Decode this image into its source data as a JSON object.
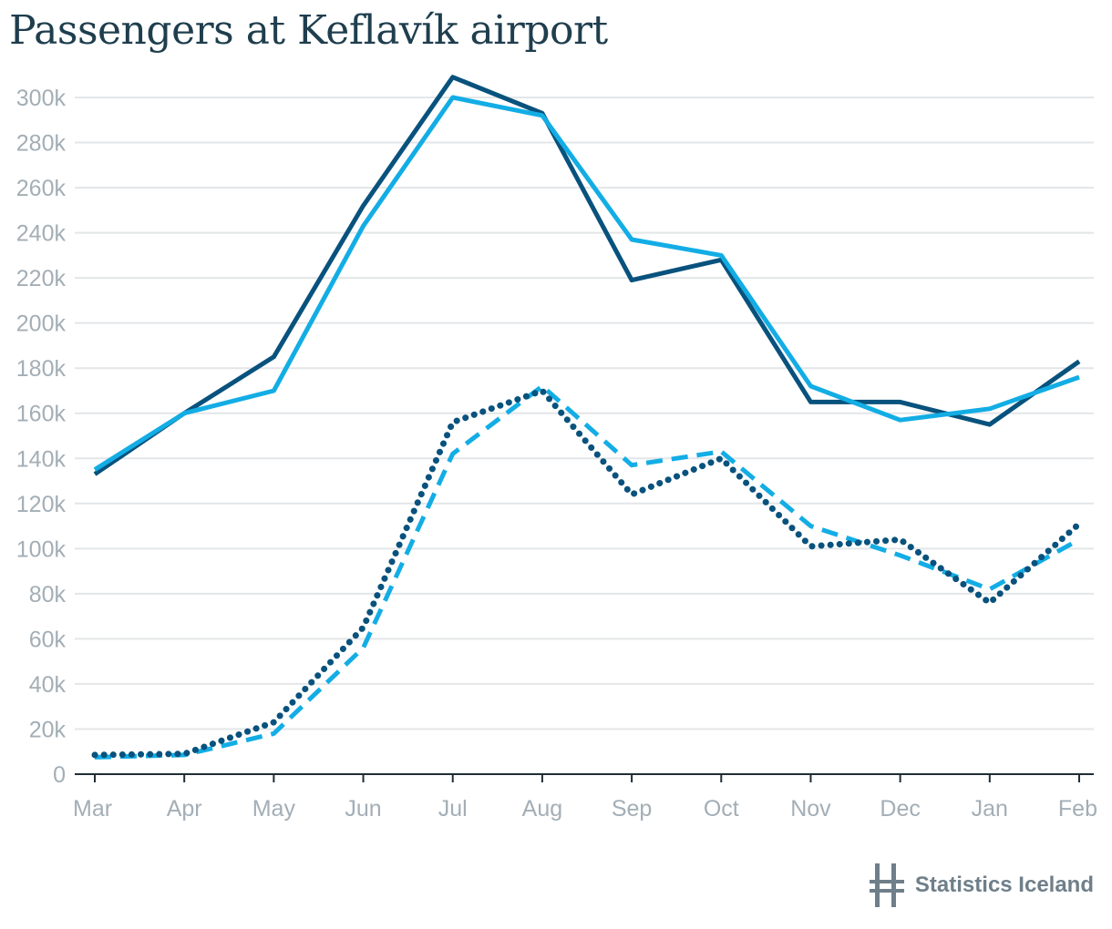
{
  "title": "Passengers at Keflavík airport",
  "brand": {
    "name": "Statistics Iceland",
    "logo_icon": "statistics-iceland-logo-icon"
  },
  "colors": {
    "dark": "#08527d",
    "light": "#13ade5",
    "grid": "#e3e6e8",
    "axis": "#1f2d36",
    "tick_text": "#a3aeb6"
  },
  "chart_data": {
    "type": "line",
    "title": "Passengers at Keflavík airport",
    "xlabel": "",
    "ylabel": "",
    "categories": [
      "Mar",
      "Apr",
      "May",
      "Jun",
      "Jul",
      "Aug",
      "Sep",
      "Oct",
      "Nov",
      "Dec",
      "Jan",
      "Feb"
    ],
    "ylim": [
      0,
      300000
    ],
    "yticks": [
      0,
      20000,
      40000,
      60000,
      80000,
      100000,
      120000,
      140000,
      160000,
      180000,
      200000,
      220000,
      240000,
      260000,
      280000,
      300000
    ],
    "ytick_labels": [
      "0",
      "20k",
      "40k",
      "60k",
      "80k",
      "100k",
      "120k",
      "140k",
      "160k",
      "180k",
      "200k",
      "220k",
      "240k",
      "260k",
      "280k",
      "300k"
    ],
    "grid": true,
    "series": [
      {
        "name": "series-dark-solid",
        "color": "#08527d",
        "style": "solid",
        "values": [
          133000,
          160000,
          185000,
          252000,
          309000,
          293000,
          219000,
          228000,
          165000,
          165000,
          155000,
          183000
        ]
      },
      {
        "name": "series-light-solid",
        "color": "#13ade5",
        "style": "solid",
        "values": [
          135000,
          160000,
          170000,
          243000,
          300000,
          292000,
          237000,
          230000,
          172000,
          157000,
          162000,
          176000
        ]
      },
      {
        "name": "series-light-dashed",
        "color": "#13ade5",
        "style": "dashed",
        "values": [
          7500,
          8500,
          18000,
          56000,
          142000,
          172000,
          137000,
          143000,
          110000,
          97000,
          82000,
          104000
        ]
      },
      {
        "name": "series-dark-dotted",
        "color": "#08527d",
        "style": "dotted",
        "values": [
          8500,
          9000,
          23000,
          65000,
          156000,
          170000,
          124000,
          140000,
          101000,
          104000,
          76000,
          111000
        ]
      }
    ]
  }
}
